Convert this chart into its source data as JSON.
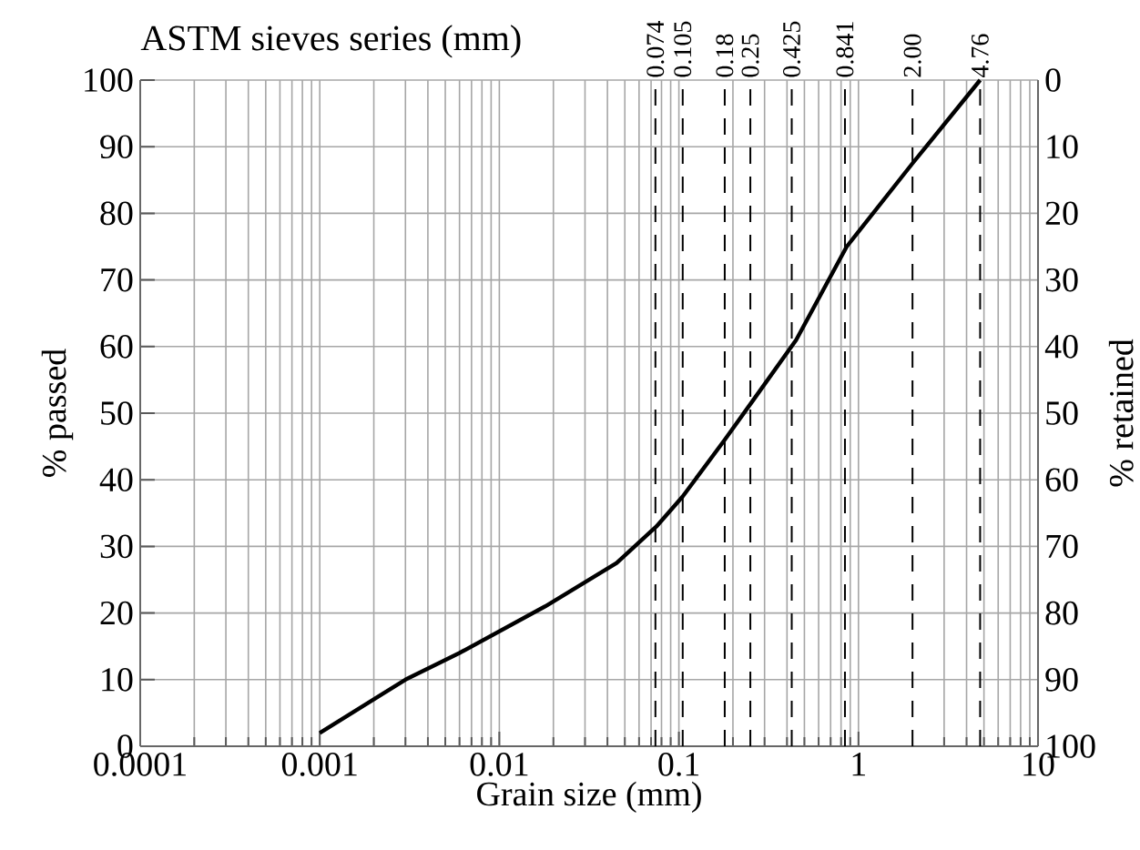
{
  "chart_data": {
    "type": "line",
    "title": "ASTM sieves series (mm)",
    "xlabel": "Grain size (mm)",
    "ylabel": "% passed",
    "y2label": "% retained",
    "log": "x",
    "grid": true,
    "marker": "none",
    "line_style": "solid",
    "xlim": [
      0.0001,
      10
    ],
    "xticks": [
      0.0001,
      0.001,
      0.01,
      0.1,
      1,
      10
    ],
    "ylim": [
      0,
      100
    ],
    "yticks": [
      0,
      10,
      20,
      30,
      40,
      50,
      60,
      70,
      80,
      90,
      100
    ],
    "y2lim": [
      100,
      0
    ],
    "y2ticks": [
      0,
      10,
      20,
      30,
      40,
      50,
      60,
      70,
      80,
      90,
      100
    ],
    "series": [
      {
        "color": "#000000",
        "x": [
          0.001,
          0.003,
          0.006,
          0.018,
          0.045,
          0.075,
          0.105,
          0.18,
          0.26,
          0.45,
          0.86,
          2.0,
          4.76
        ],
        "values": [
          2,
          10,
          14,
          21,
          27.5,
          33,
          37.5,
          46,
          52,
          61,
          75,
          87.5,
          100
        ]
      }
    ],
    "ref_lines": [
      {
        "axis": "x",
        "value": 0.074,
        "label": "0.074",
        "line_style": "dashed"
      },
      {
        "axis": "x",
        "value": 0.105,
        "label": "0.105",
        "line_style": "dashed"
      },
      {
        "axis": "x",
        "value": 0.18,
        "label": "0.18",
        "line_style": "dashed"
      },
      {
        "axis": "x",
        "value": 0.25,
        "label": "0.25",
        "line_style": "dashed"
      },
      {
        "axis": "x",
        "value": 0.425,
        "label": "0.425",
        "line_style": "dashed"
      },
      {
        "axis": "x",
        "value": 0.841,
        "label": "0.841",
        "line_style": "dashed"
      },
      {
        "axis": "x",
        "value": 2.0,
        "label": "2.00",
        "line_style": "dashed"
      },
      {
        "axis": "x",
        "value": 4.76,
        "label": "4.76",
        "line_style": "dashed"
      }
    ]
  }
}
